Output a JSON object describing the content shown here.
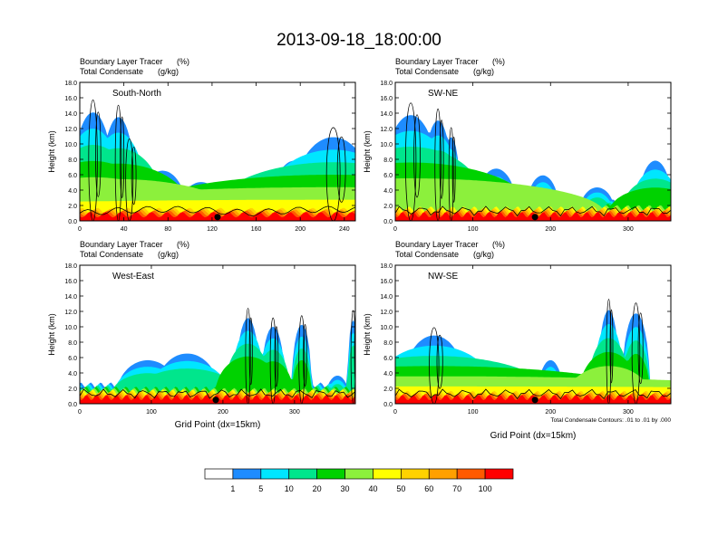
{
  "page_title": "2013-09-18_18:00:00",
  "chart_data": {
    "type": "heatmap",
    "title": "2013-09-18_18:00:00",
    "fill_variable": "Boundary Layer Tracer",
    "fill_units": "(%)",
    "contour_variable": "Total Condensate",
    "contour_units": "(g/kg)",
    "contour_note": "Total Condensate Contours: .01 to .01 by .000",
    "xlabel": "Grid Point (dx=15km)",
    "ylabel": "Height (km)",
    "ylim": [
      0,
      18
    ],
    "y_ticks": [
      "0.0",
      "2.0",
      "4.0",
      "6.0",
      "8.0",
      "10.0",
      "12.0",
      "14.0",
      "16.0",
      "18.0"
    ],
    "colorbar": {
      "labels": [
        "1",
        "5",
        "10",
        "20",
        "30",
        "40",
        "50",
        "60",
        "70",
        "100"
      ],
      "colors": [
        "#ffffff",
        "#1e8cff",
        "#00e6ff",
        "#00e68c",
        "#00d200",
        "#8cf03c",
        "#ffff00",
        "#ffd200",
        "#ffa000",
        "#ff5a00",
        "#ff0000"
      ]
    },
    "panels": [
      {
        "name": "South-North",
        "xlim": [
          0,
          250
        ],
        "x_ticks": [
          0,
          40,
          80,
          120,
          160,
          200,
          240
        ],
        "marker_x": 125,
        "show_xlabel": false,
        "show_contour_note": false,
        "features": [
          {
            "cx": 12,
            "w": 14,
            "h": 16.2,
            "s": 1.4,
            "p": 5
          },
          {
            "cx": 35,
            "w": 10,
            "h": 15.5,
            "s": 1.6,
            "p": 5
          },
          {
            "cx": 45,
            "w": 12,
            "h": 11.0,
            "s": 1.3,
            "p": 4
          },
          {
            "cx": 75,
            "w": 22,
            "h": 7.5,
            "s": 1.0,
            "p": 3
          },
          {
            "cx": 110,
            "w": 20,
            "h": 5.8,
            "s": 1.0,
            "p": 3
          },
          {
            "cx": 160,
            "w": 22,
            "h": 5.5,
            "s": 1.0,
            "p": 3
          },
          {
            "cx": 195,
            "w": 20,
            "h": 9.0,
            "s": 1.1,
            "p": 4
          },
          {
            "cx": 230,
            "w": 22,
            "h": 12.5,
            "s": 1.7,
            "p": 6
          }
        ]
      },
      {
        "name": "SW-NE",
        "xlim": [
          0,
          355
        ],
        "x_ticks": [
          0,
          100,
          200,
          300
        ],
        "marker_x": 180,
        "show_xlabel": false,
        "show_contour_note": false,
        "features": [
          {
            "cx": 20,
            "w": 24,
            "h": 15.8,
            "s": 1.6,
            "p": 5
          },
          {
            "cx": 55,
            "w": 14,
            "h": 15.0,
            "s": 1.4,
            "p": 5
          },
          {
            "cx": 72,
            "w": 10,
            "h": 12.5,
            "s": 1.2,
            "p": 4
          },
          {
            "cx": 130,
            "w": 30,
            "h": 7.8,
            "s": 0.9,
            "p": 3
          },
          {
            "cx": 190,
            "w": 24,
            "h": 6.8,
            "s": 0.9,
            "p": 3
          },
          {
            "cx": 260,
            "w": 26,
            "h": 5.0,
            "s": 0.9,
            "p": 3
          },
          {
            "cx": 335,
            "w": 16,
            "h": 9.0,
            "s": 1.4,
            "p": 4
          }
        ]
      },
      {
        "name": "West-East",
        "xlim": [
          0,
          385
        ],
        "x_ticks": [
          0,
          100,
          200,
          300
        ],
        "marker_x": 190,
        "show_xlabel": true,
        "show_contour_note": false,
        "features": [
          {
            "cx": 95,
            "w": 40,
            "h": 6.5,
            "s": 1.1,
            "p": 3
          },
          {
            "cx": 150,
            "w": 35,
            "h": 7.5,
            "s": 1.3,
            "p": 3
          },
          {
            "cx": 235,
            "w": 12,
            "h": 12.8,
            "s": 1.4,
            "p": 4
          },
          {
            "cx": 270,
            "w": 14,
            "h": 11.5,
            "s": 1.2,
            "p": 4
          },
          {
            "cx": 310,
            "w": 14,
            "h": 11.8,
            "s": 1.0,
            "p": 4
          },
          {
            "cx": 360,
            "w": 18,
            "h": 4.2,
            "s": 0.9,
            "p": 3
          },
          {
            "cx": 382,
            "w": 8,
            "h": 12.5,
            "s": 1.0,
            "p": 3
          }
        ]
      },
      {
        "name": "NW-SE",
        "xlim": [
          0,
          355
        ],
        "x_ticks": [
          0,
          100,
          200,
          300
        ],
        "marker_x": 180,
        "show_xlabel": true,
        "show_contour_note": true,
        "features": [
          {
            "cx": 50,
            "w": 22,
            "h": 10.2,
            "s": 1.9,
            "p": 6
          },
          {
            "cx": 100,
            "w": 28,
            "h": 6.5,
            "s": 1.2,
            "p": 3
          },
          {
            "cx": 150,
            "w": 25,
            "h": 5.5,
            "s": 1.0,
            "p": 3
          },
          {
            "cx": 200,
            "w": 18,
            "h": 6.5,
            "s": 0.9,
            "p": 3
          },
          {
            "cx": 275,
            "w": 10,
            "h": 14.0,
            "s": 1.4,
            "p": 5
          },
          {
            "cx": 310,
            "w": 18,
            "h": 13.5,
            "s": 1.0,
            "p": 4
          },
          {
            "cx": 345,
            "w": 12,
            "h": 3.5,
            "s": 0.9,
            "p": 3
          }
        ]
      }
    ]
  }
}
